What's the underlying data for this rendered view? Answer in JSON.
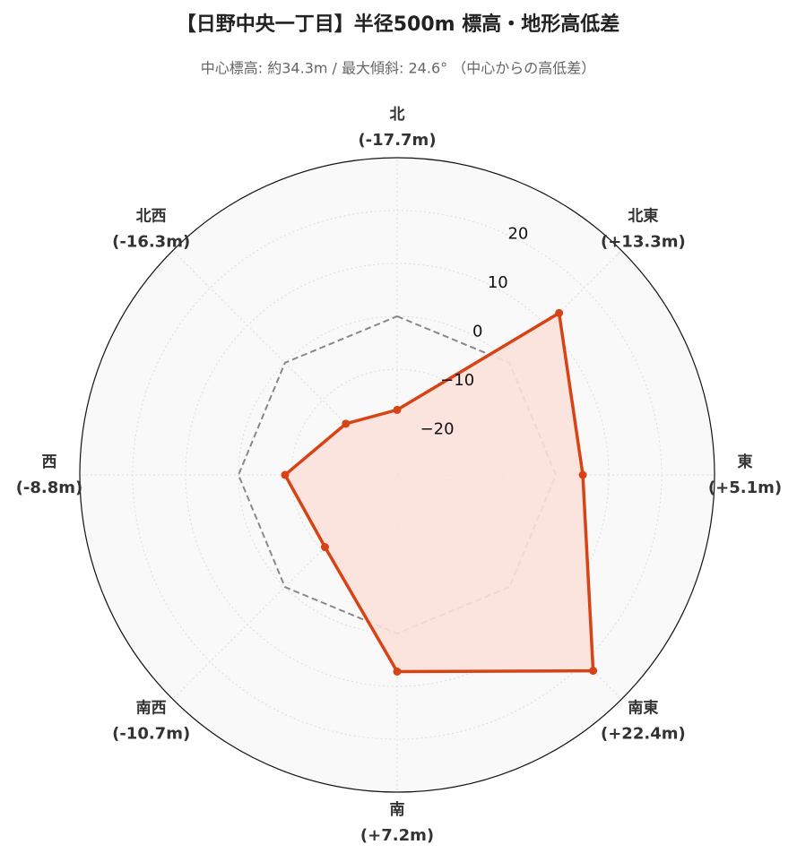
{
  "chart_data": {
    "type": "radar",
    "title": "【日野中央一丁目】半径500m 標高・地形高低差",
    "subtitle": "中心標高: 約34.3m / 最大傾斜: 24.6° （中心からの高低差）",
    "categories": [
      "北",
      "北東",
      "東",
      "南東",
      "南",
      "南西",
      "西",
      "北西"
    ],
    "values": [
      -17.7,
      13.3,
      5.1,
      22.4,
      7.2,
      -10.7,
      -8.8,
      -16.3
    ],
    "value_labels": [
      "(-17.7m)",
      "(+13.3m)",
      "(+5.1m)",
      "(+22.4m)",
      "(+7.2m)",
      "(-10.7m)",
      "(-8.8m)",
      "(-16.3m)"
    ],
    "color": "#d84315",
    "fill": "#fbe0da",
    "reference": 0,
    "reference_color": "#888888",
    "ylim": [
      -30,
      30
    ],
    "yticks": [
      {
        "value": -20,
        "label": "−20"
      },
      {
        "value": -10,
        "label": "−10"
      },
      0,
      10,
      20
    ],
    "grid": true
  }
}
